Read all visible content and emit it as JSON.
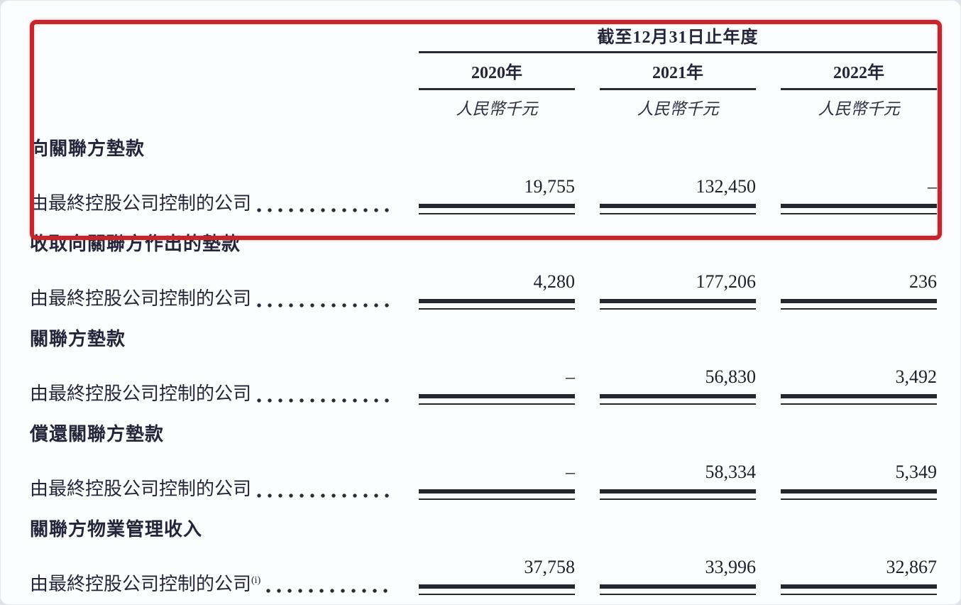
{
  "annotation": {
    "color": "#c2272d"
  },
  "table": {
    "period_header": "截至12月31日止年度",
    "columns": [
      {
        "year": "2020年",
        "unit": "人民幣千元"
      },
      {
        "year": "2021年",
        "unit": "人民幣千元"
      },
      {
        "year": "2022年",
        "unit": "人民幣千元"
      }
    ],
    "sections": [
      {
        "title": "向關聯方墊款",
        "row_label": "由最終控股公司控制的公司",
        "sup": "",
        "values": [
          "19,755",
          "132,450",
          "–"
        ]
      },
      {
        "title": "收取向關聯方作出的墊款",
        "row_label": "由最終控股公司控制的公司",
        "sup": "",
        "values": [
          "4,280",
          "177,206",
          "236"
        ]
      },
      {
        "title": "關聯方墊款",
        "row_label": "由最終控股公司控制的公司",
        "sup": "",
        "values": [
          "–",
          "56,830",
          "3,492"
        ]
      },
      {
        "title": "償還關聯方墊款",
        "row_label": "由最終控股公司控制的公司",
        "sup": "",
        "values": [
          "–",
          "58,334",
          "5,349"
        ]
      },
      {
        "title": "關聯方物業管理收入",
        "row_label": "由最終控股公司控制的公司",
        "sup": "(i)",
        "values": [
          "37,758",
          "33,996",
          "32,867"
        ]
      }
    ]
  }
}
